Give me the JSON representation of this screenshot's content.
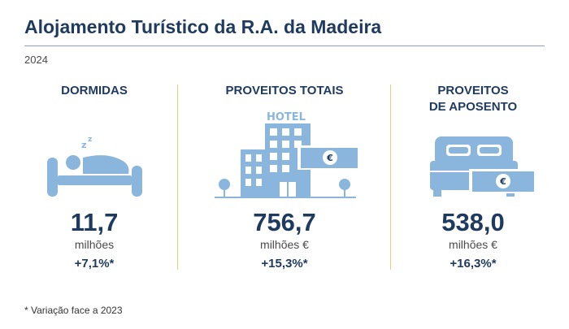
{
  "title": "Alojamento Turístico da R.A. da Madeira",
  "year": "2024",
  "colors": {
    "accent": "#1f3a5f",
    "icon": "#8ab6dd",
    "divider": "#e9cf7c"
  },
  "stats": [
    {
      "heading": "DORMIDAS",
      "icon": "sleeping-person-in-bed",
      "value": "11,7",
      "unit": "milhões",
      "change": "+7,1%*"
    },
    {
      "heading": "PROVEITOS TOTAIS",
      "icon": "hotel-building-with-euro-sign",
      "icon_text": "HOTEL",
      "value": "756,7",
      "unit": "milhões €",
      "change": "+15,3%*"
    },
    {
      "heading": "PROVEITOS\nDE APOSENTO",
      "heading_line1": "PROVEITOS",
      "heading_line2": "DE APOSENTO",
      "icon": "double-bed-with-euro-sign",
      "value": "538,0",
      "unit": "milhões €",
      "change": "+16,3%*"
    }
  ],
  "euro_symbol": "€",
  "footnote": "* Variação face a 2023"
}
